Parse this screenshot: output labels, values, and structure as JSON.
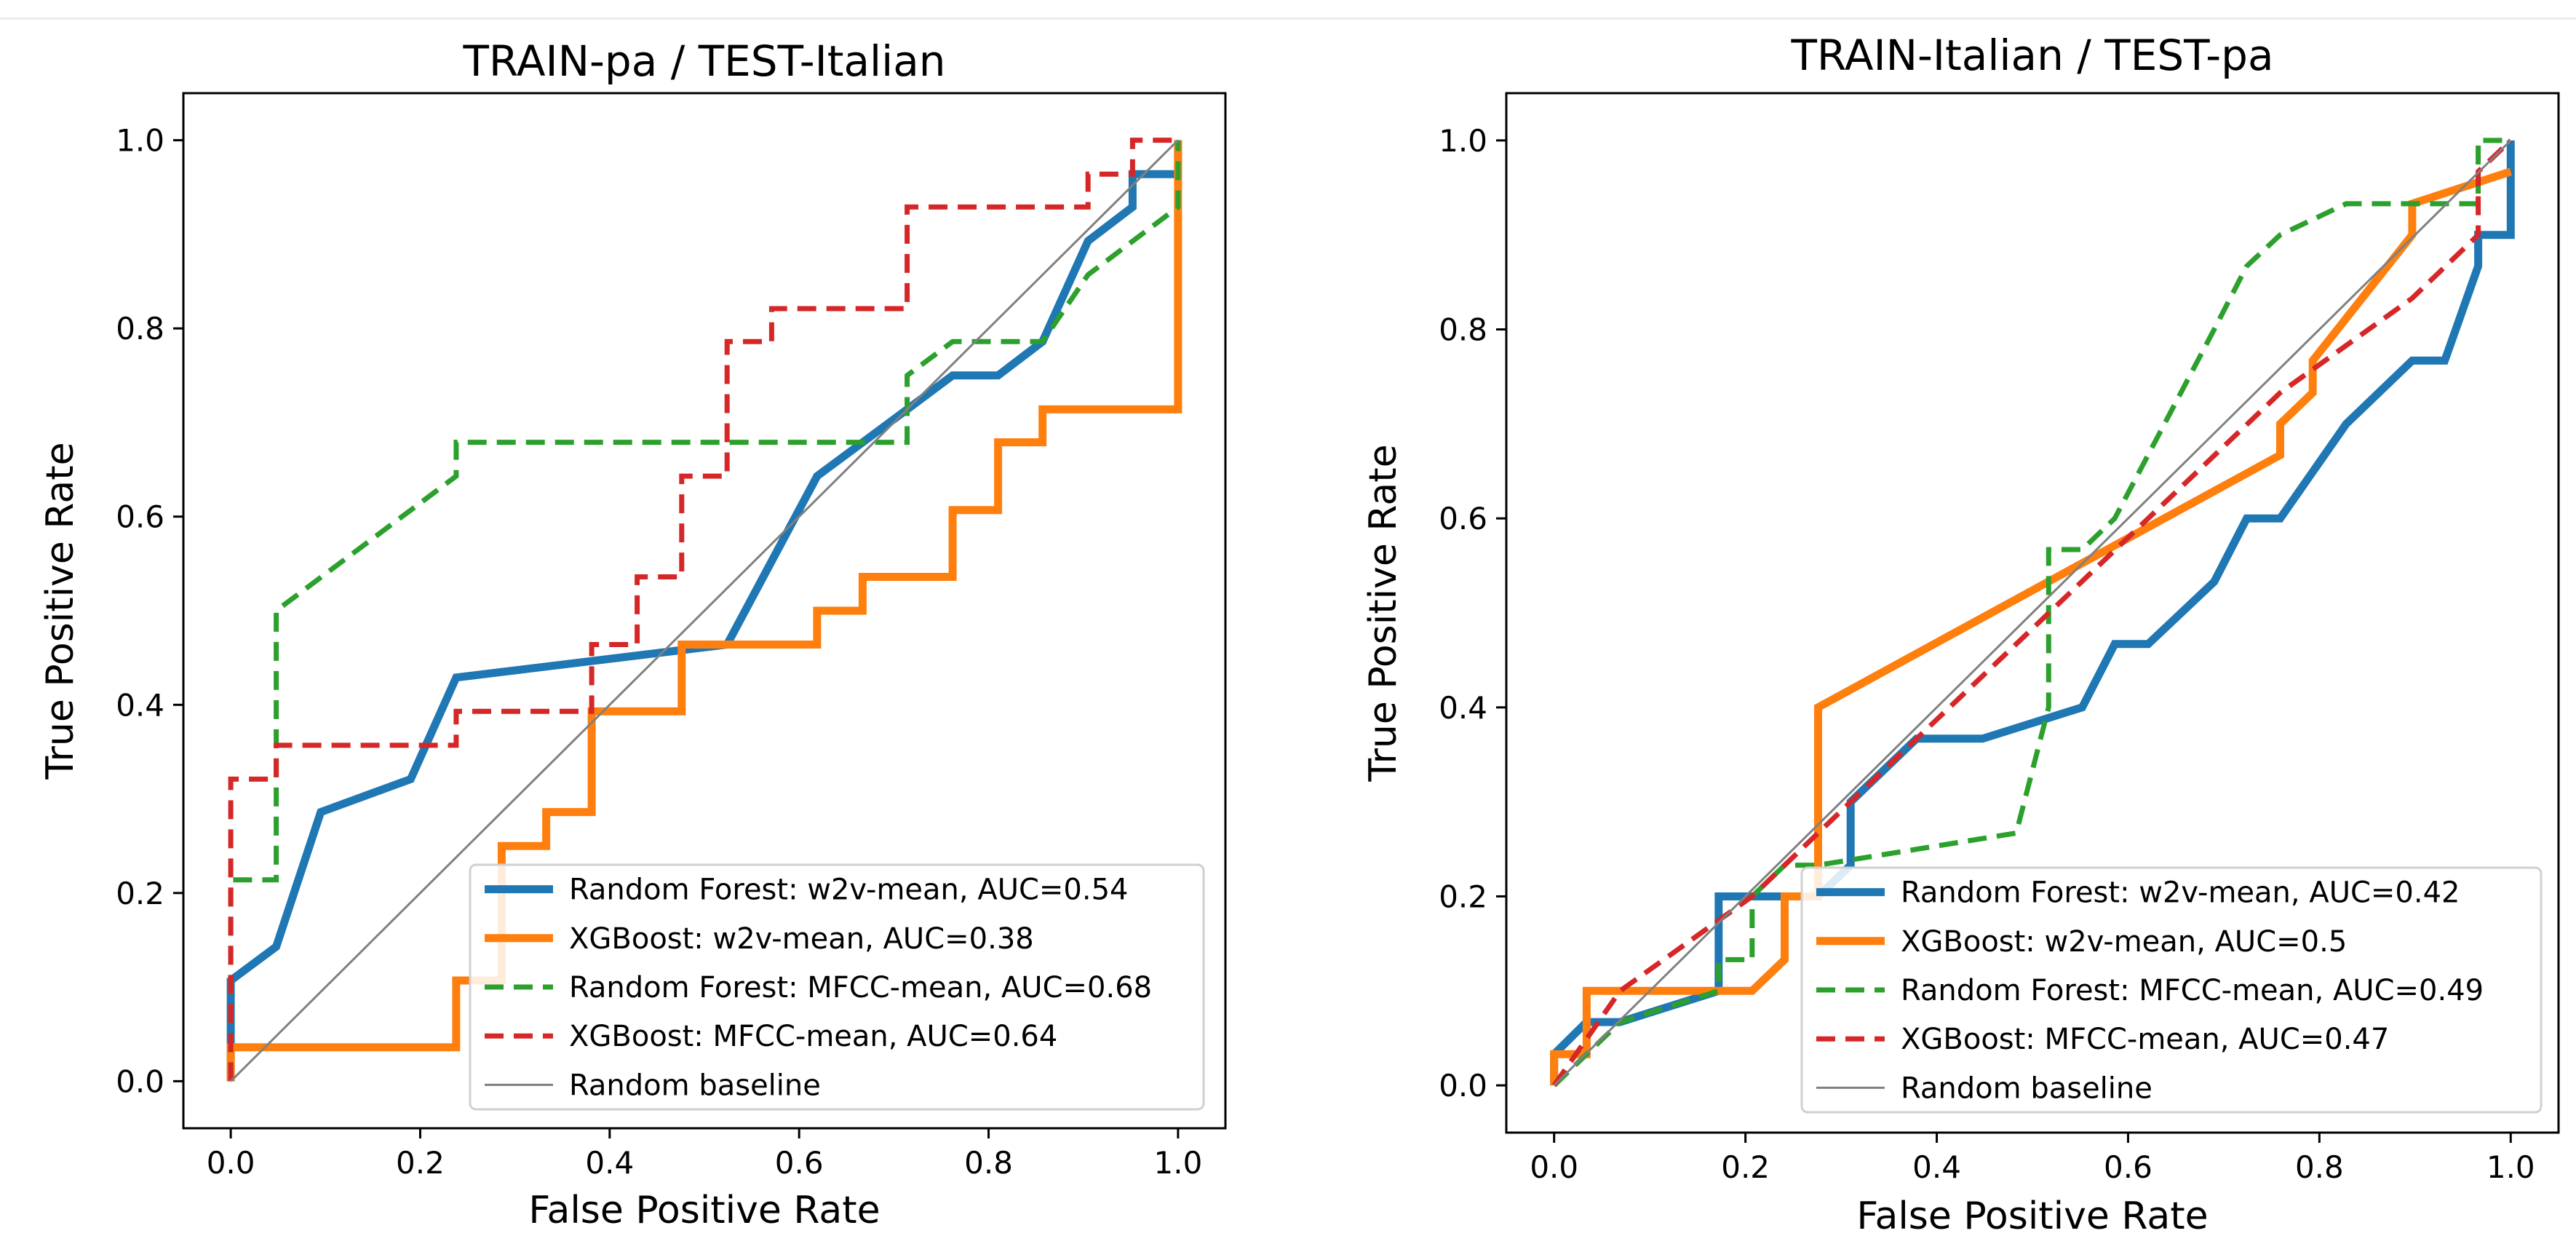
{
  "chart_data": [
    {
      "type": "line",
      "title": "TRAIN-pa / TEST-Italian",
      "xlabel": "False Positive Rate",
      "ylabel": "True Positive Rate",
      "xlim": [
        -0.05,
        1.05
      ],
      "ylim": [
        -0.05,
        1.05
      ],
      "xticks": [
        "0.0",
        "0.2",
        "0.4",
        "0.6",
        "0.8",
        "1.0"
      ],
      "yticks": [
        "0.0",
        "0.2",
        "0.4",
        "0.6",
        "0.8",
        "1.0"
      ],
      "legend_position": "lower-right",
      "series": [
        {
          "name": "Random Forest: w2v-mean, AUC=0.54",
          "color": "#1f77b4",
          "style": "solid",
          "width": "thick",
          "x": [
            0,
            0,
            0.048,
            0.095,
            0.19,
            0.238,
            0.524,
            0.619,
            0.714,
            0.762,
            0.81,
            0.857,
            0.905,
            0.952,
            0.952,
            1.0,
            1.0
          ],
          "y": [
            0,
            0.107,
            0.143,
            0.286,
            0.321,
            0.429,
            0.464,
            0.643,
            0.714,
            0.75,
            0.75,
            0.786,
            0.893,
            0.929,
            0.964,
            0.964,
            1.0
          ]
        },
        {
          "name": "XGBoost: w2v-mean, AUC=0.38",
          "color": "#ff7f0e",
          "style": "solid",
          "width": "thick",
          "x": [
            0,
            0,
            0.238,
            0.238,
            0.286,
            0.286,
            0.333,
            0.333,
            0.381,
            0.381,
            0.476,
            0.476,
            0.619,
            0.619,
            0.667,
            0.667,
            0.762,
            0.762,
            0.81,
            0.81,
            0.857,
            0.857,
            1.0,
            1.0
          ],
          "y": [
            0,
            0.036,
            0.036,
            0.107,
            0.107,
            0.25,
            0.25,
            0.286,
            0.286,
            0.393,
            0.393,
            0.464,
            0.464,
            0.5,
            0.5,
            0.536,
            0.536,
            0.607,
            0.607,
            0.679,
            0.679,
            0.714,
            0.714,
            1.0
          ]
        },
        {
          "name": "Random Forest: MFCC-mean, AUC=0.68",
          "color": "#2ca02c",
          "style": "dashed",
          "width": "normal",
          "x": [
            0,
            0,
            0.048,
            0.048,
            0.238,
            0.238,
            0.714,
            0.714,
            0.762,
            0.857,
            0.905,
            1.0,
            1.0
          ],
          "y": [
            0,
            0.214,
            0.214,
            0.5,
            0.643,
            0.679,
            0.679,
            0.75,
            0.786,
            0.786,
            0.857,
            0.929,
            1.0
          ]
        },
        {
          "name": "XGBoost: MFCC-mean, AUC=0.64",
          "color": "#d62728",
          "style": "dashed",
          "width": "normal",
          "x": [
            0,
            0,
            0.048,
            0.048,
            0.238,
            0.238,
            0.381,
            0.381,
            0.429,
            0.429,
            0.476,
            0.476,
            0.524,
            0.524,
            0.571,
            0.571,
            0.619,
            0.619,
            0.714,
            0.714,
            0.905,
            0.905,
            0.952,
            0.952,
            1.0
          ],
          "y": [
            0,
            0.321,
            0.321,
            0.357,
            0.357,
            0.393,
            0.393,
            0.464,
            0.464,
            0.536,
            0.536,
            0.643,
            0.643,
            0.786,
            0.786,
            0.821,
            0.821,
            0.821,
            0.821,
            0.929,
            0.929,
            0.964,
            0.964,
            1.0,
            1.0
          ]
        },
        {
          "name": "Random baseline",
          "color": "#808080",
          "style": "solid",
          "width": "thin",
          "x": [
            0,
            1
          ],
          "y": [
            0,
            1
          ]
        }
      ]
    },
    {
      "type": "line",
      "title": "TRAIN-Italian / TEST-pa",
      "xlabel": "False Positive Rate",
      "ylabel": "True Positive Rate",
      "xlim": [
        -0.05,
        1.05
      ],
      "ylim": [
        -0.05,
        1.05
      ],
      "xticks": [
        "0.0",
        "0.2",
        "0.4",
        "0.6",
        "0.8",
        "1.0"
      ],
      "yticks": [
        "0.0",
        "0.2",
        "0.4",
        "0.6",
        "0.8",
        "1.0"
      ],
      "legend_position": "lower-right",
      "series": [
        {
          "name": "Random Forest: w2v-mean, AUC=0.42",
          "color": "#1f77b4",
          "style": "solid",
          "width": "thick",
          "x": [
            0,
            0,
            0.034,
            0.069,
            0.172,
            0.172,
            0.276,
            0.31,
            0.31,
            0.379,
            0.448,
            0.552,
            0.586,
            0.586,
            0.621,
            0.69,
            0.724,
            0.759,
            0.828,
            0.897,
            0.931,
            0.966,
            0.966,
            1.0,
            1.0
          ],
          "y": [
            0,
            0.033,
            0.067,
            0.067,
            0.1,
            0.2,
            0.2,
            0.233,
            0.3,
            0.367,
            0.367,
            0.4,
            0.467,
            0.467,
            0.467,
            0.533,
            0.6,
            0.6,
            0.7,
            0.767,
            0.767,
            0.867,
            0.9,
            0.9,
            1.0
          ]
        },
        {
          "name": "XGBoost: w2v-mean, AUC=0.5",
          "color": "#ff7f0e",
          "style": "solid",
          "width": "thick",
          "x": [
            0,
            0,
            0.034,
            0.034,
            0.207,
            0.241,
            0.241,
            0.276,
            0.276,
            0.759,
            0.759,
            0.793,
            0.793,
            0.897,
            0.897,
            1.0
          ],
          "y": [
            0,
            0.033,
            0.033,
            0.1,
            0.1,
            0.133,
            0.2,
            0.2,
            0.4,
            0.667,
            0.7,
            0.733,
            0.767,
            0.9,
            0.933,
            0.967
          ]
        },
        {
          "name": "Random Forest: MFCC-mean, AUC=0.49",
          "color": "#2ca02c",
          "style": "dashed",
          "width": "normal",
          "x": [
            0,
            0.034,
            0.069,
            0.172,
            0.172,
            0.207,
            0.207,
            0.241,
            0.276,
            0.483,
            0.517,
            0.517,
            0.552,
            0.586,
            0.69,
            0.724,
            0.759,
            0.828,
            0.897,
            0.966,
            0.966,
            1.0
          ],
          "y": [
            0,
            0.033,
            0.067,
            0.1,
            0.133,
            0.133,
            0.2,
            0.233,
            0.233,
            0.267,
            0.4,
            0.567,
            0.567,
            0.6,
            0.8,
            0.867,
            0.9,
            0.933,
            0.933,
            0.933,
            1.0,
            1.0
          ]
        },
        {
          "name": "XGBoost: MFCC-mean, AUC=0.47",
          "color": "#d62728",
          "style": "dashed",
          "width": "normal",
          "x": [
            0,
            0.069,
            0.207,
            0.31,
            0.379,
            0.483,
            0.621,
            0.759,
            0.897,
            0.966,
            0.966,
            1.0
          ],
          "y": [
            0,
            0.1,
            0.2,
            0.3,
            0.367,
            0.467,
            0.6,
            0.733,
            0.833,
            0.9,
            0.967,
            1.0
          ]
        },
        {
          "name": "Random baseline",
          "color": "#808080",
          "style": "solid",
          "width": "thin",
          "x": [
            0,
            1
          ],
          "y": [
            0,
            1
          ]
        }
      ]
    }
  ]
}
